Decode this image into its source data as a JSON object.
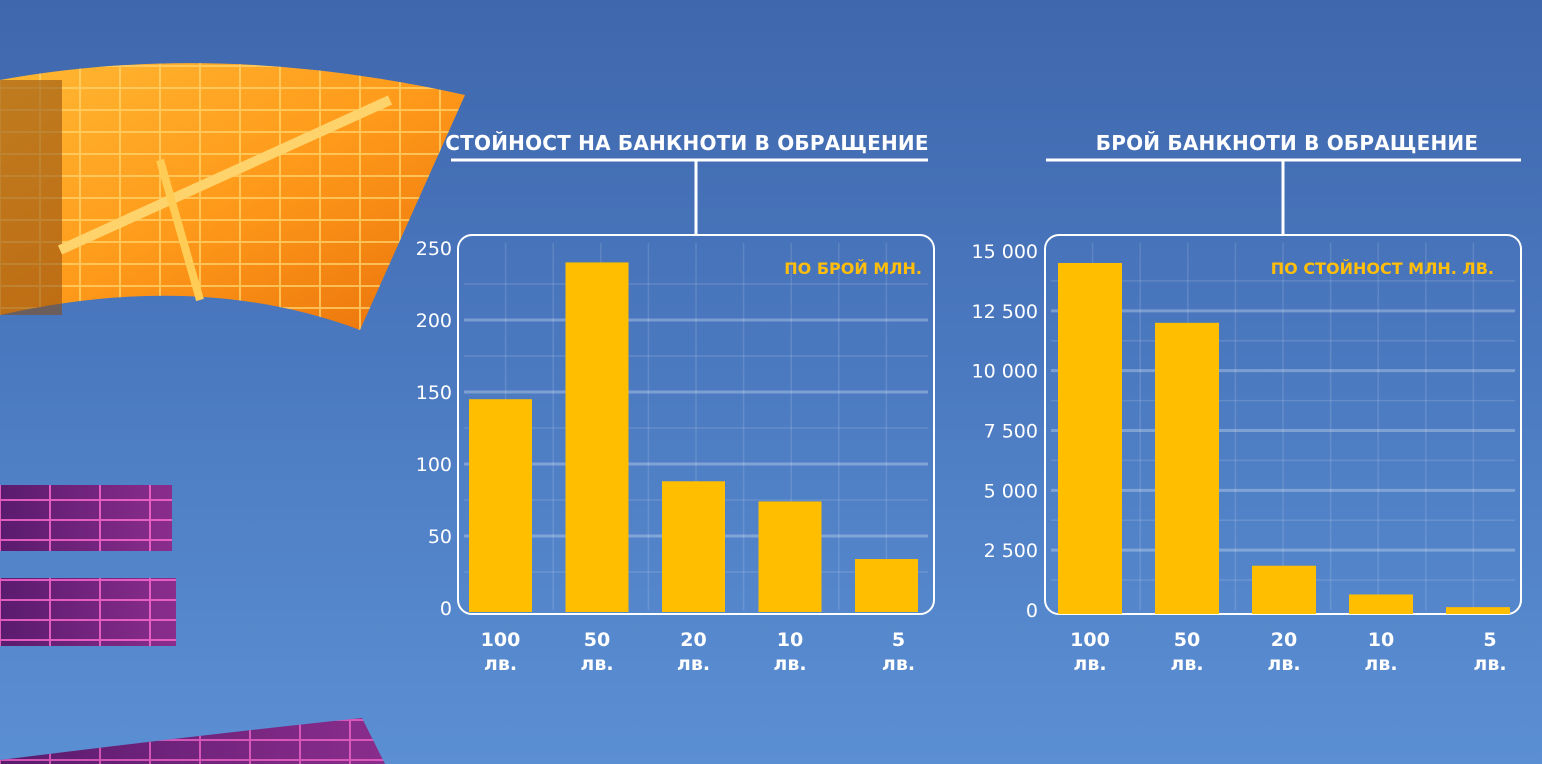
{
  "colors": {
    "bar": "#ffbe00",
    "accent_text": "#ffbe0b",
    "background": "#4a78bf"
  },
  "decoration": {
    "description_icon": "euro-sign-building-collage-icon"
  },
  "chart_data": [
    {
      "type": "bar",
      "title": "СТОЙНОСТ НА БАНКНОТИ  В ОБРАЩЕНИЕ",
      "annotation": "ПО БРОЙ МЛН.",
      "categories": [
        [
          "100",
          "лв."
        ],
        [
          "50",
          "лв."
        ],
        [
          "20",
          "лв."
        ],
        [
          "10",
          "лв."
        ],
        [
          "5",
          "лв."
        ]
      ],
      "values": [
        145,
        240,
        88,
        74,
        34
      ],
      "yticks": [
        "0",
        "50",
        "100",
        "150",
        "200",
        "250"
      ],
      "ytick_values": [
        0,
        50,
        100,
        150,
        200,
        250
      ],
      "ylim": [
        0,
        250
      ],
      "grid": true
    },
    {
      "type": "bar",
      "title": "БРОЙ БАНКНОТИ В ОБРАЩЕНИЕ",
      "annotation": "ПО СТОЙНОСТ МЛН. ЛВ.",
      "categories": [
        [
          "100",
          "лв."
        ],
        [
          "50",
          "лв."
        ],
        [
          "20",
          "лв."
        ],
        [
          "10",
          "лв."
        ],
        [
          "5",
          "лв."
        ]
      ],
      "values": [
        14500,
        12000,
        1850,
        650,
        120
      ],
      "yticks": [
        "0",
        "2 500",
        "5 000",
        "7 500",
        "10 000",
        "12 500",
        "15 000"
      ],
      "ytick_values": [
        0,
        2500,
        5000,
        7500,
        10000,
        12500,
        15000
      ],
      "ylim": [
        0,
        15000
      ],
      "grid": true
    }
  ]
}
